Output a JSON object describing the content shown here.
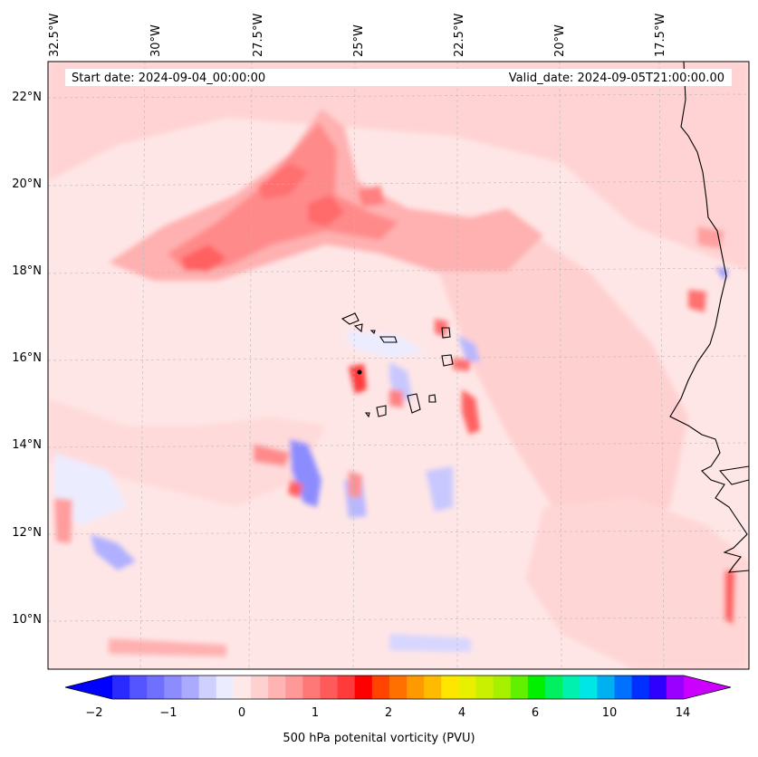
{
  "header": {
    "start_date": "Start date: 2024-09-04_00:00:00",
    "valid_date": "Valid_date: 2024-09-05T21:00:00.00"
  },
  "map": {
    "lon_labels": [
      "32.5°W",
      "30°W",
      "27.5°W",
      "25°W",
      "22.5°W",
      "20°W",
      "17.5°W"
    ],
    "lat_labels": [
      "22°N",
      "20°N",
      "18°N",
      "16°N",
      "14°N",
      "12°N",
      "10°N"
    ],
    "field": "500 hPa potential vorticity",
    "gridlines": true,
    "coastlines": true
  },
  "colorbar": {
    "label": "500 hPa potenital vorticity (PVU)",
    "ticks": [
      "−2",
      "−1",
      "0",
      "1",
      "2",
      "4",
      "6",
      "10",
      "14"
    ],
    "colors": [
      "#0000ff",
      "#2a2aff",
      "#5555ff",
      "#7070ff",
      "#8c8cff",
      "#aaaaff",
      "#d0d0ff",
      "#ececff",
      "#ffe8e8",
      "#ffd0d0",
      "#ffb4b4",
      "#ff9898",
      "#ff7878",
      "#ff5a5a",
      "#ff3a3a",
      "#ff0000",
      "#ff4400",
      "#ff7000",
      "#ff9900",
      "#ffbb00",
      "#ffe600",
      "#e8f000",
      "#c8f000",
      "#a6f000",
      "#60f000",
      "#00f000",
      "#00f060",
      "#00f0b0",
      "#00e6e6",
      "#00b0f0",
      "#0070ff",
      "#0030ff",
      "#3000ff",
      "#9900ff",
      "#cc00ff"
    ]
  }
}
